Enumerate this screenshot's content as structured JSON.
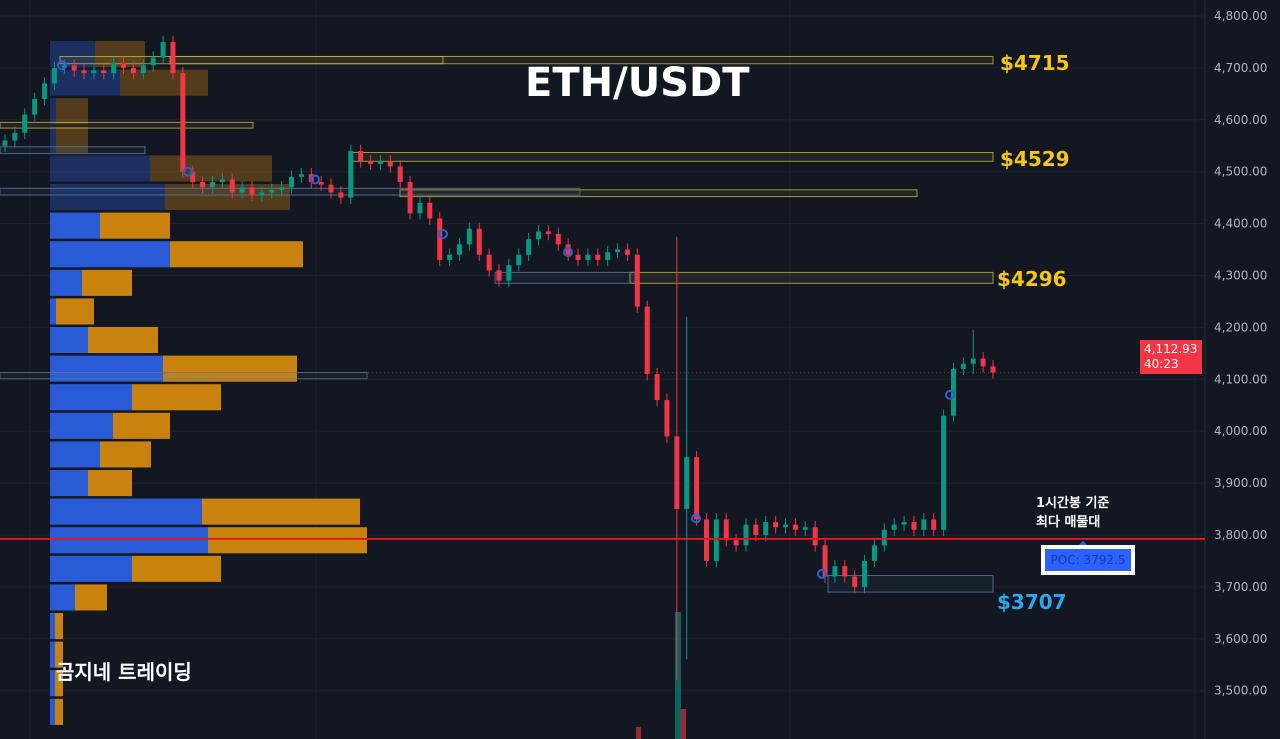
{
  "chart_data": {
    "type": "candlestick",
    "title": "ETH/USDT",
    "ylim": [
      3460,
      4830
    ],
    "yticks": [
      3500,
      3600,
      3700,
      3800,
      3900,
      4000,
      4100,
      4200,
      4300,
      4400,
      4500,
      4600,
      4700,
      4800
    ],
    "ytick_labels": [
      "3,500.00",
      "3,600.00",
      "3,700.00",
      "3,800.00",
      "3,900.00",
      "4,000.00",
      "4,100.00",
      "4,200.00",
      "4,300.00",
      "4,400.00",
      "4,500.00",
      "4,600.00",
      "4,700.00",
      "4,800.00"
    ],
    "closes": [
      4560,
      4575,
      4610,
      4640,
      4670,
      4700,
      4705,
      4695,
      4690,
      4695,
      4690,
      4710,
      4700,
      4690,
      4705,
      4720,
      4750,
      4690,
      4500,
      4480,
      4470,
      4480,
      4485,
      4460,
      4470,
      4455,
      4460,
      4465,
      4470,
      4490,
      4495,
      4480,
      4475,
      4460,
      4450,
      4540,
      4520,
      4515,
      4520,
      4510,
      4480,
      4420,
      4440,
      4410,
      4330,
      4340,
      4360,
      4390,
      4340,
      4310,
      4290,
      4320,
      4340,
      4370,
      4385,
      4380,
      4360,
      4340,
      4330,
      4340,
      4330,
      4345,
      4350,
      4340,
      4240,
      4110,
      4060,
      3990,
      3850,
      3950,
      3830,
      3750,
      3830,
      3790,
      3780,
      3820,
      3800,
      3825,
      3815,
      3820,
      3810,
      3815,
      3780,
      3720,
      3740,
      3720,
      3700,
      3750,
      3780,
      3810,
      3820,
      3825,
      3810,
      3830,
      3810,
      4030,
      4120,
      4130,
      4140,
      4125,
      4113
    ],
    "first_open": 4550,
    "long_wicks": [
      {
        "index": 68,
        "high": 4375,
        "low": 3520
      },
      {
        "index": 69,
        "high": 4220,
        "low": 3560
      },
      {
        "index": 98,
        "high": 4195,
        "low": 4110
      }
    ],
    "current_price": 4112.93,
    "countdown": "40:23",
    "poc": 3792.5,
    "levels": [
      {
        "label": "$4715",
        "price": 4715,
        "color": "#f5c518"
      },
      {
        "label": "$4529",
        "price": 4529,
        "color": "#f5c518"
      },
      {
        "label": "$4296",
        "price": 4296,
        "color": "#f5c518"
      },
      {
        "label": "$3707",
        "price": 3707,
        "color": "#29a8f0"
      }
    ],
    "volume_profile": [
      {
        "buy": 45,
        "sell": 50
      },
      {
        "buy": 70,
        "sell": 88
      },
      {
        "buy": 6,
        "sell": 32
      },
      {
        "buy": 6,
        "sell": 32
      },
      {
        "buy": 100,
        "sell": 122
      },
      {
        "buy": 115,
        "sell": 125
      },
      {
        "buy": 50,
        "sell": 70
      },
      {
        "buy": 120,
        "sell": 133
      },
      {
        "buy": 32,
        "sell": 50
      },
      {
        "buy": 6,
        "sell": 38
      },
      {
        "buy": 38,
        "sell": 70
      },
      {
        "buy": 113,
        "sell": 134
      },
      {
        "buy": 82,
        "sell": 89
      },
      {
        "buy": 63,
        "sell": 57
      },
      {
        "buy": 50,
        "sell": 51
      },
      {
        "buy": 38,
        "sell": 44
      },
      {
        "buy": 152,
        "sell": 158
      },
      {
        "buy": 158,
        "sell": 159
      },
      {
        "buy": 82,
        "sell": 89
      },
      {
        "buy": 25,
        "sell": 32
      },
      {
        "buy": 5,
        "sell": 8
      },
      {
        "buy": 5,
        "sell": 8
      },
      {
        "buy": 5,
        "sell": 8
      },
      {
        "buy": 5,
        "sell": 8
      }
    ],
    "colors": {
      "up": "#089981",
      "down": "#f23645",
      "buy": "#2a5bd7",
      "sell": "#c9820e",
      "poc_line": "#e0191e",
      "background": "#131722"
    }
  },
  "header": {
    "title": "ETH/USDT"
  },
  "watermark": "곰지네 트레이딩",
  "annotation": {
    "line1": "1시간봉 기준",
    "line2": "최다 매물대"
  },
  "poc_label": "POC: 3792.5",
  "price_tag": {
    "price": "4,112.93",
    "countdown": "40:23"
  }
}
